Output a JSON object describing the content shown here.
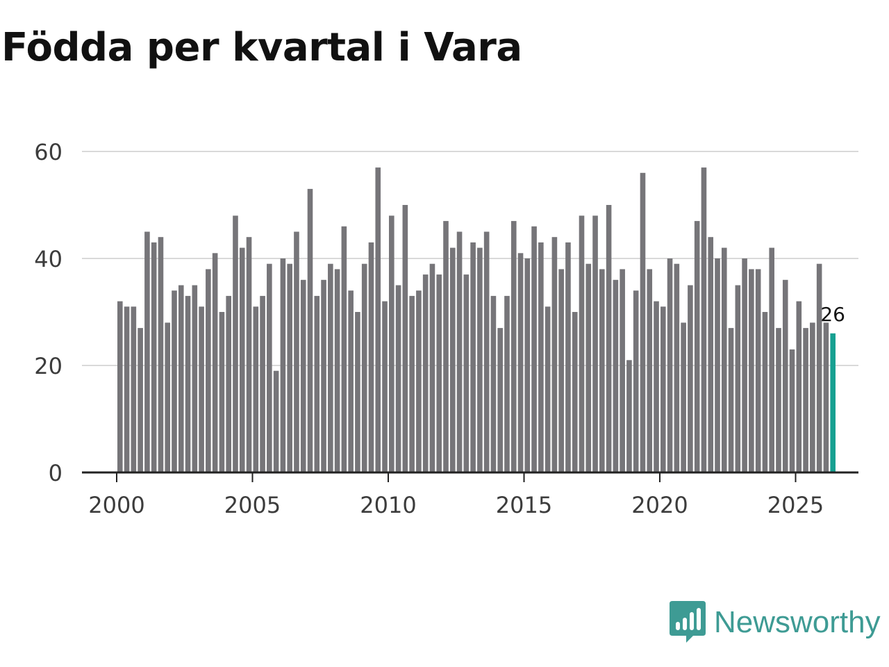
{
  "page": {
    "title": "Födda per kvartal i Vara"
  },
  "brand": {
    "name": "Newsworthy",
    "color": "#3e9b94",
    "icon": "newsworthy-logo-icon"
  },
  "colors": {
    "bar": "#767579",
    "highlight": "#16a091",
    "grid": "#d9d9d9",
    "axis": "#222222"
  },
  "chart_data": {
    "type": "bar",
    "title": "Födda per kvartal i Vara",
    "xlabel": "",
    "ylabel": "",
    "ylim": [
      0,
      60
    ],
    "xlim": [
      1999.6,
      2027.25
    ],
    "yticks": [
      0,
      20,
      40,
      60
    ],
    "xticks": [
      2000,
      2005,
      2010,
      2015,
      2020,
      2025
    ],
    "grid": true,
    "x_start": 2000.0,
    "x_step": 0.25,
    "values": [
      32,
      31,
      31,
      27,
      45,
      43,
      44,
      28,
      34,
      35,
      33,
      35,
      31,
      38,
      41,
      30,
      33,
      48,
      42,
      44,
      31,
      33,
      39,
      19,
      40,
      39,
      45,
      36,
      53,
      33,
      36,
      39,
      38,
      46,
      34,
      30,
      39,
      43,
      57,
      32,
      48,
      35,
      50,
      33,
      34,
      37,
      39,
      37,
      47,
      42,
      45,
      37,
      43,
      42,
      45,
      33,
      27,
      33,
      47,
      41,
      40,
      46,
      43,
      31,
      44,
      38,
      43,
      30,
      48,
      39,
      48,
      38,
      50,
      36,
      38,
      21,
      34,
      56,
      38,
      32,
      31,
      40,
      39,
      28,
      35,
      47,
      57,
      44,
      40,
      42,
      27,
      35,
      40,
      38,
      38,
      30,
      42,
      27,
      36,
      23,
      32,
      27,
      28,
      39,
      28,
      26
    ],
    "highlight_last": true,
    "annotation": {
      "text": "26",
      "index": 105
    }
  }
}
